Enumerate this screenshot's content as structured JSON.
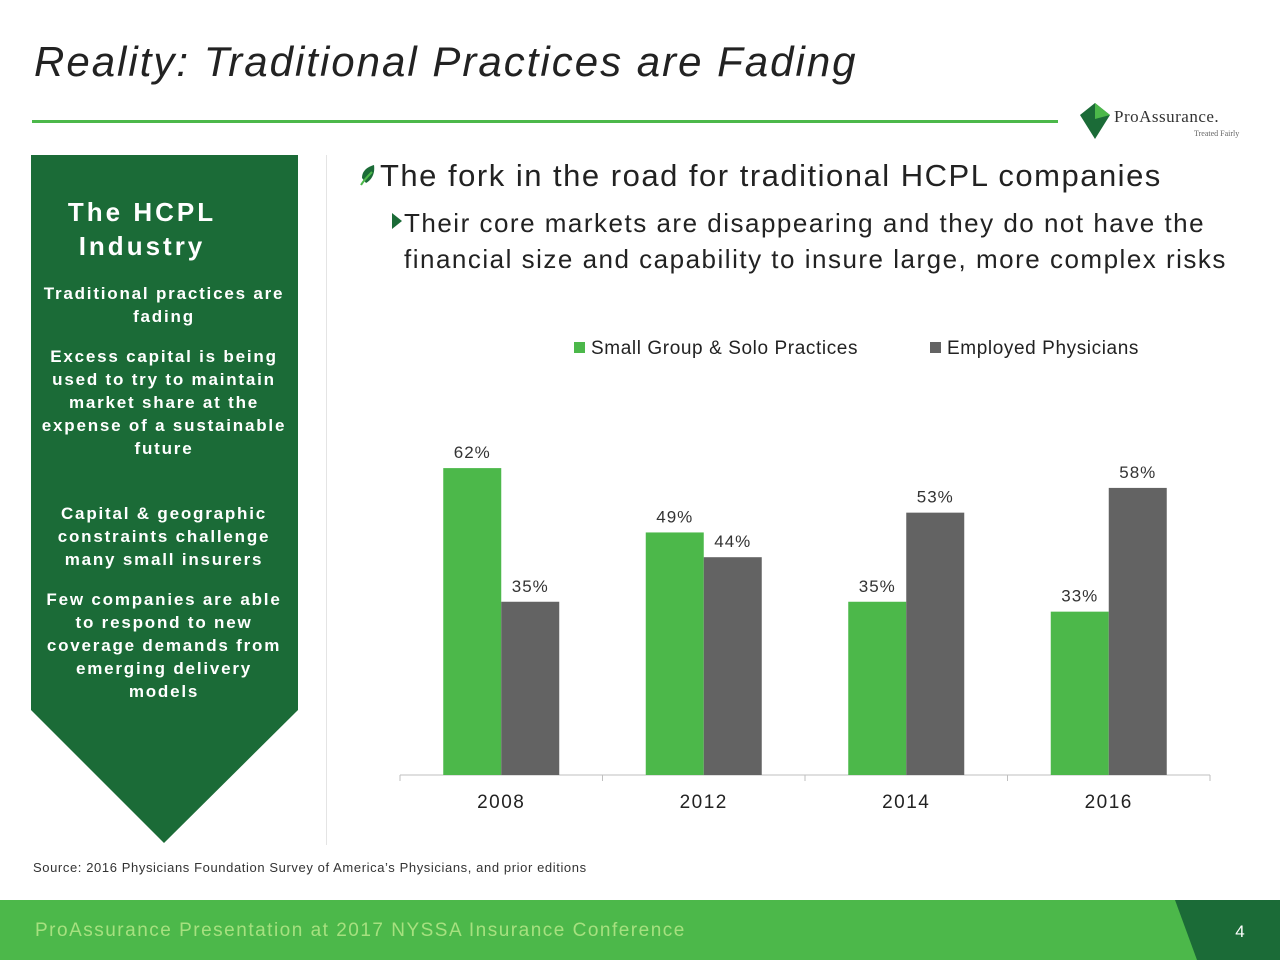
{
  "slide": {
    "title": "Reality: Traditional Practices are Fading",
    "logo": {
      "name": "ProAssurance.",
      "tagline": "Treated Fairly"
    },
    "panel": {
      "heading": "The HCPL Industry",
      "items": [
        "Traditional practices are fading",
        "Excess capital is being used to try to maintain market share at the expense of a sustainable future",
        "Capital & geographic constraints challenge many small insurers",
        "Few companies are able to respond to new coverage demands from emerging delivery models"
      ]
    },
    "bullets": {
      "main": "The fork in the road for traditional HCPL companies",
      "sub": "Their core markets are disappearing and they do not have the financial size and capability to insure large, more complex risks"
    },
    "source": "Source: 2016 Physicians Foundation Survey of America’s Physicians, and prior editions",
    "footer": {
      "text": "ProAssurance Presentation at 2017 NYSSA Insurance Conference",
      "page": "4"
    }
  },
  "colors": {
    "accent_green": "#4cb84a",
    "dark_green": "#1b6b37",
    "gray_series": "#636363"
  },
  "chart_data": {
    "type": "bar",
    "categories": [
      "2008",
      "2012",
      "2014",
      "2016"
    ],
    "series": [
      {
        "name": "Small Group & Solo Practices",
        "color": "#4cb84a",
        "values": [
          62,
          49,
          35,
          33
        ],
        "labels": [
          "62%",
          "49%",
          "35%",
          "33%"
        ]
      },
      {
        "name": "Employed Physicians",
        "color": "#636363",
        "values": [
          35,
          44,
          53,
          58
        ],
        "labels": [
          "35%",
          "44%",
          "53%",
          "58%"
        ]
      }
    ],
    "legend": "top-right",
    "ylim": [
      0,
      70
    ],
    "grid": false
  }
}
